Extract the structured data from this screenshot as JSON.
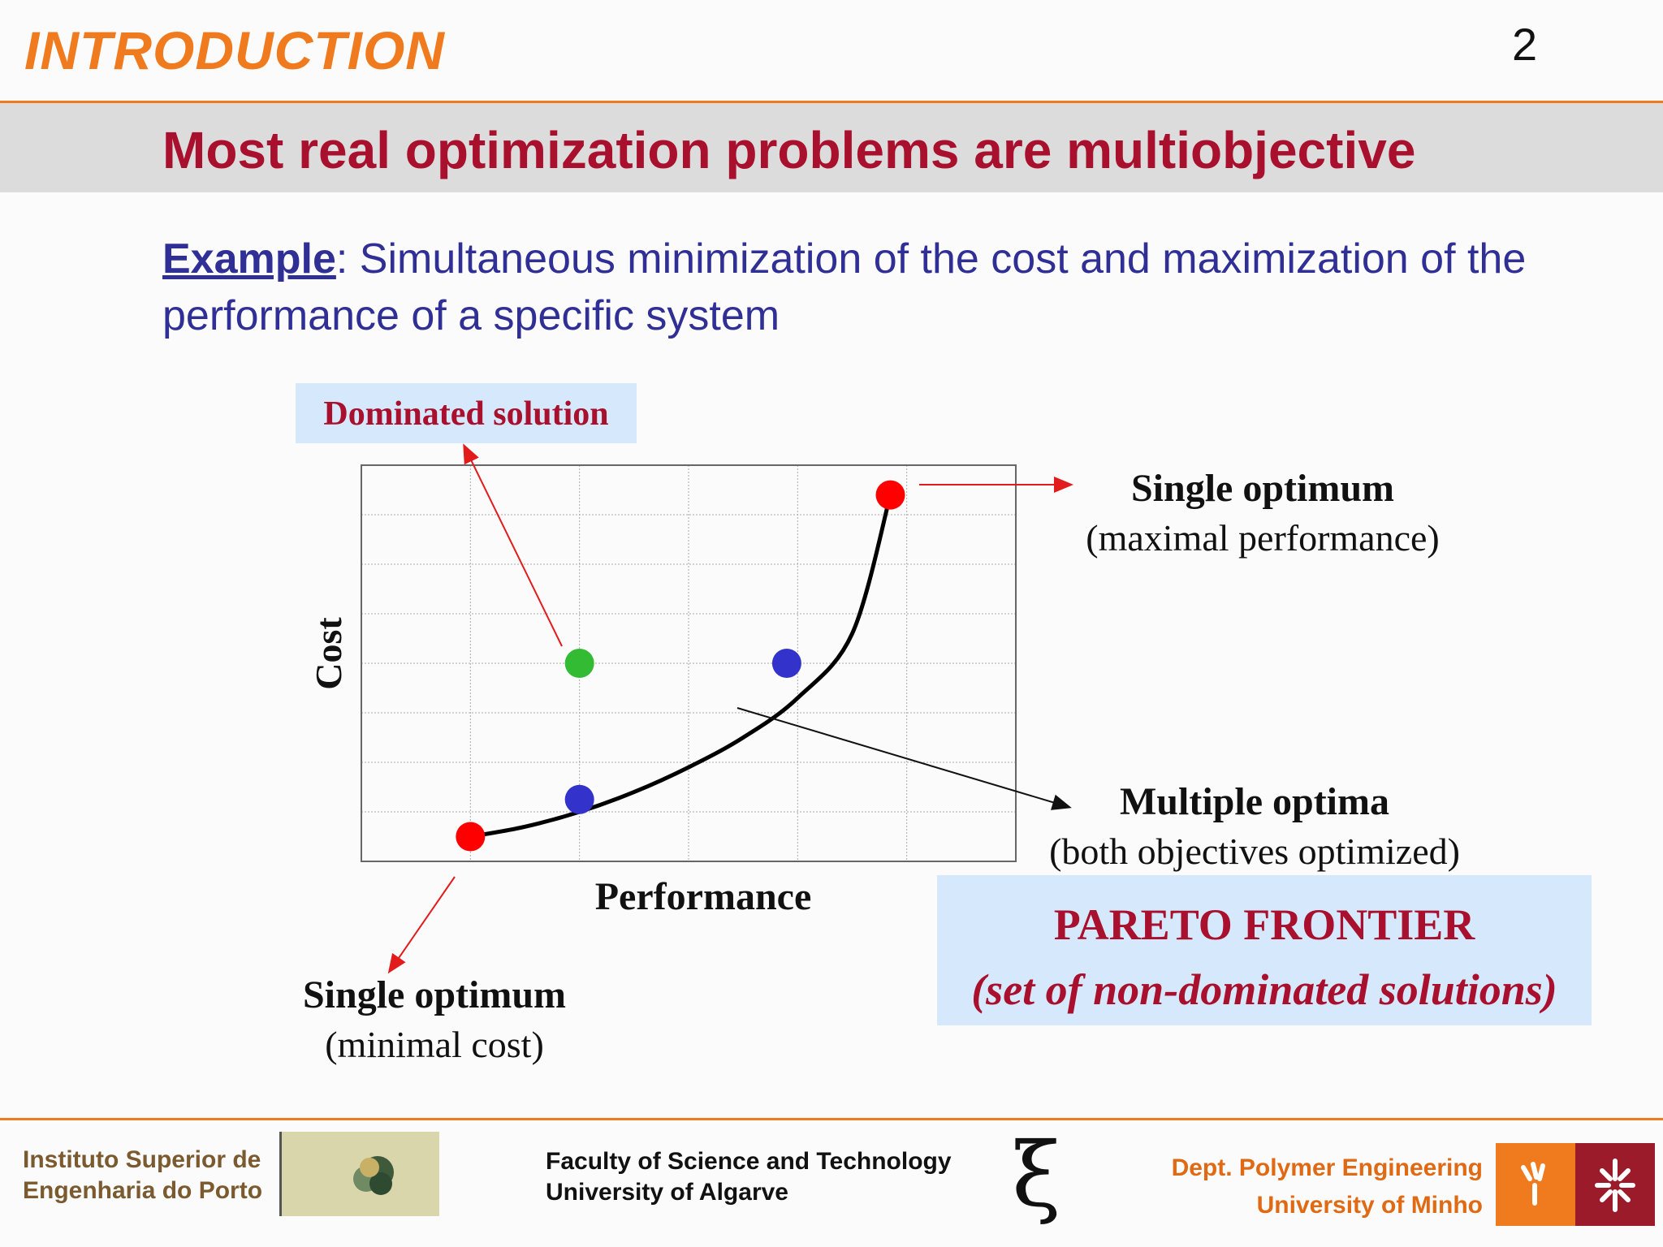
{
  "header": {
    "section_title": "INTRODUCTION",
    "page_number": "2",
    "subtitle": "Most real optimization problems are multiobjective"
  },
  "example": {
    "label": "Example",
    "text": ": Simultaneous minimization of the cost and maximization of the performance of a specific system"
  },
  "colors": {
    "accent_orange": "#f07a1e",
    "title_red": "#a8102e",
    "example_blue": "#2f2f96",
    "highlight_box": "#d6e8fb",
    "optimum_point": "#ff0000",
    "pareto_point": "#3333cc",
    "dominated_point": "#33bb33"
  },
  "chart_data": {
    "type": "scatter",
    "title": "",
    "xlabel": "Performance",
    "ylabel": "Cost",
    "xlim": [
      0,
      6
    ],
    "ylim": [
      0,
      8
    ],
    "grid": true,
    "ticks": "none",
    "series": [
      {
        "name": "Pareto frontier",
        "style": "curve",
        "points": [
          [
            1,
            0.5
          ],
          [
            1.5,
            0.7
          ],
          [
            2,
            1
          ],
          [
            2.5,
            1.4
          ],
          [
            3,
            1.9
          ],
          [
            3.5,
            2.5
          ],
          [
            4,
            3.3
          ],
          [
            4.5,
            4.6
          ],
          [
            4.85,
            7.4
          ]
        ]
      },
      {
        "style": "points",
        "points": [
          {
            "x": 1,
            "y": 0.5,
            "role": "single-optimum-min-cost",
            "color": "#ff0000"
          },
          {
            "x": 2,
            "y": 1.25,
            "role": "pareto-optimum",
            "color": "#3333cc"
          },
          {
            "x": 3.9,
            "y": 4.0,
            "role": "pareto-optimum",
            "color": "#3333cc"
          },
          {
            "x": 4.85,
            "y": 7.4,
            "role": "single-optimum-max-performance",
            "color": "#ff0000"
          },
          {
            "x": 2,
            "y": 4.0,
            "role": "dominated-solution",
            "color": "#33bb33"
          }
        ]
      }
    ],
    "annotations": {
      "dominated": "Dominated solution",
      "max_perf_title": "Single optimum",
      "max_perf_sub": "(maximal  performance)",
      "multiple_title": "Multiple optima",
      "multiple_sub": "(both objectives optimized)",
      "min_cost_title": "Single optimum",
      "min_cost_sub": "(minimal cost)",
      "pareto_title": "PARETO FRONTIER",
      "pareto_sub": "(set of non-dominated solutions)"
    }
  },
  "footer": {
    "left_line1": "Instituto Superior de",
    "left_line2": "Engenharia do Porto",
    "center_line1": "Faculty of Science and Technology",
    "center_line2": "University of Algarve",
    "xi_symbol": "ξ",
    "right_line1": "Dept. Polymer Engineering",
    "right_line2": "University of Minho",
    "logos": [
      "isep-logo",
      "ualg-xi-logo",
      "uminho-logo"
    ]
  }
}
